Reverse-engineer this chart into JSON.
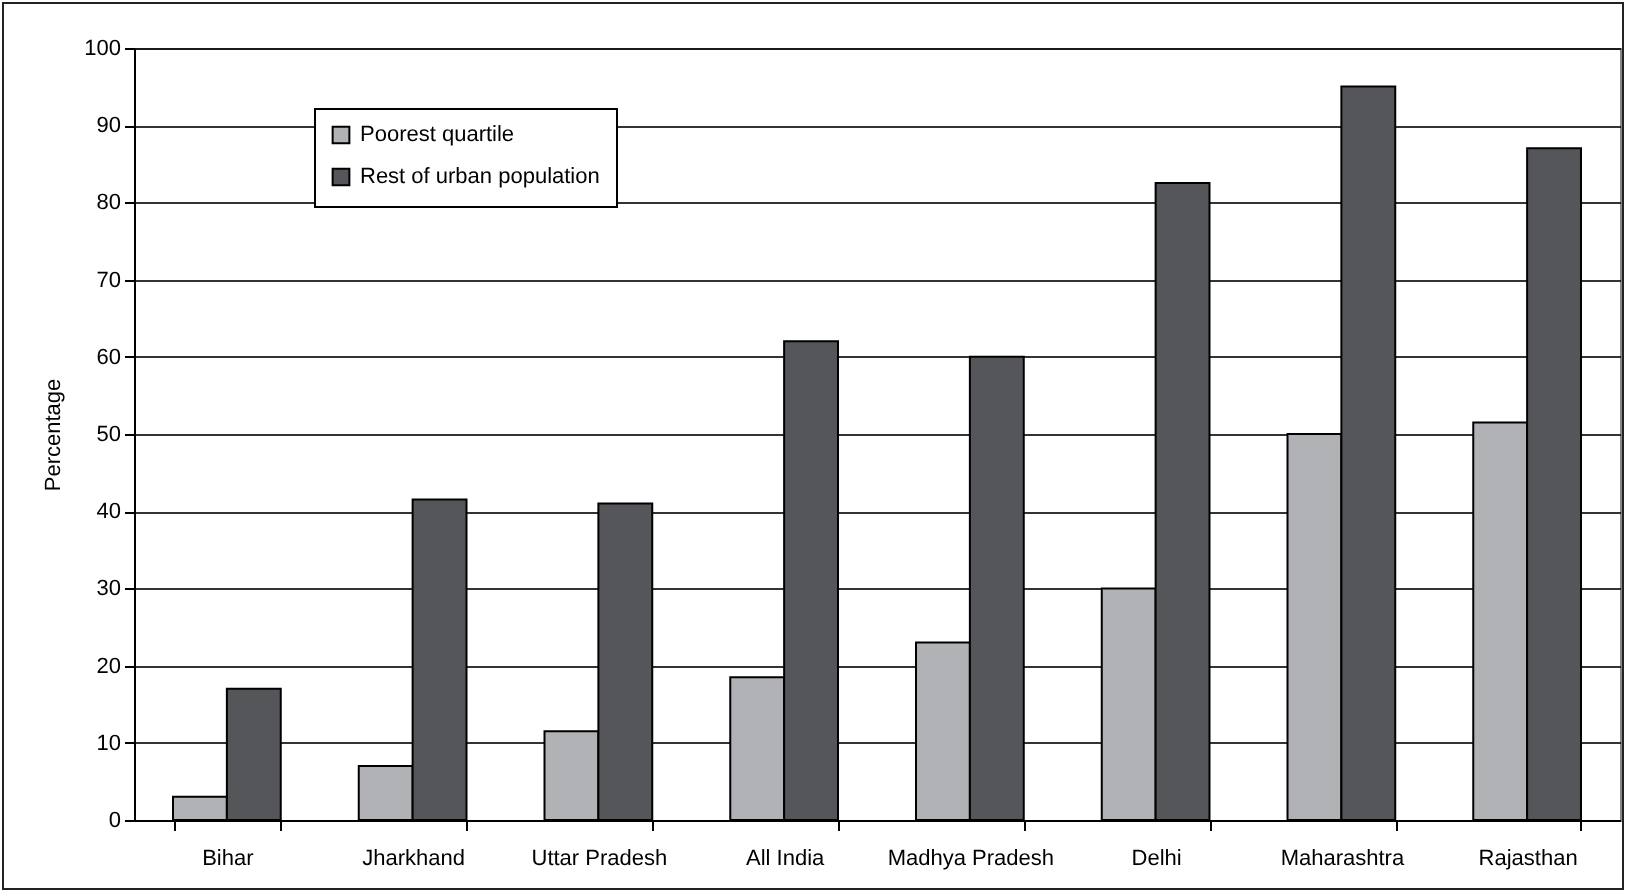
{
  "chart_data": {
    "type": "bar",
    "ylabel": "Percentage",
    "categories": [
      "Bihar",
      "Jharkhand",
      "Uttar Pradesh",
      "All India",
      "Madhya Pradesh",
      "Delhi",
      "Maharashtra",
      "Rajasthan"
    ],
    "series": [
      {
        "name": "Poorest quartile",
        "color": "#b1b2b5",
        "values": [
          3,
          7,
          11.5,
          18.5,
          23,
          30,
          50,
          51.5
        ]
      },
      {
        "name": "Rest of urban population",
        "color": "#55565a",
        "values": [
          17,
          41.5,
          41,
          62,
          60,
          82.5,
          95,
          87
        ]
      }
    ],
    "ylim": [
      0,
      100
    ],
    "yticks": [
      0,
      10,
      20,
      30,
      40,
      50,
      60,
      70,
      80,
      90,
      100
    ],
    "grid": "y",
    "legend": "top left"
  }
}
